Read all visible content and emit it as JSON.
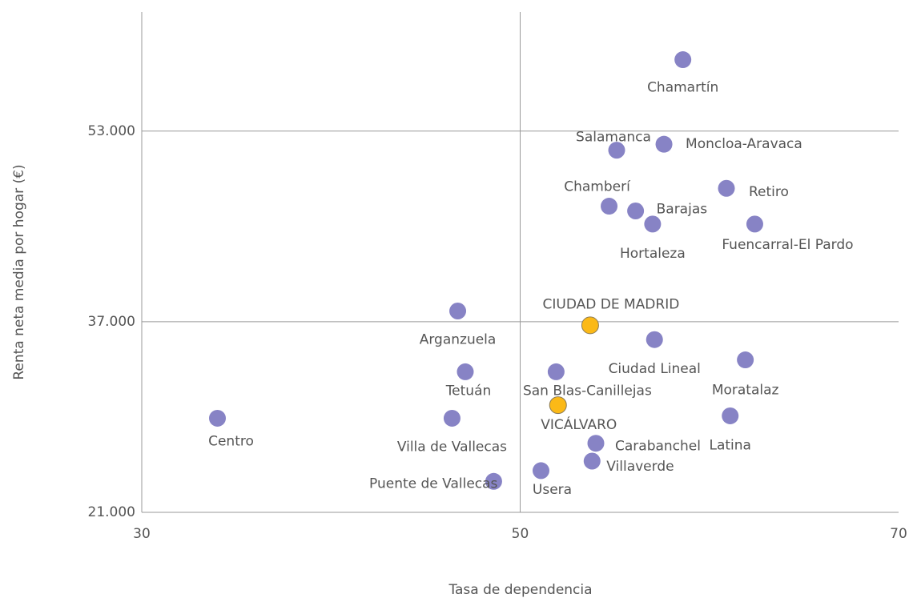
{
  "chart_data": {
    "type": "scatter",
    "x_label": "Tasa de dependencia",
    "y_label": "Renta neta media por hogar (€)",
    "xlim": [
      30,
      70
    ],
    "xticks": [
      30,
      50,
      70
    ],
    "ylim": [
      21000,
      63000
    ],
    "yticks": [
      {
        "value": 21000,
        "label": "21.000"
      },
      {
        "value": 37000,
        "label": "37.000"
      },
      {
        "value": 53000,
        "label": "53.000"
      }
    ],
    "grid": true,
    "labels": [
      "Chamartín",
      "Salamanca",
      "Moncloa-Aravaca",
      "Retiro",
      "Chamberí",
      "Barajas",
      "Hortaleza",
      "Fuencarral-El Pardo",
      "Arganzuela",
      "CIUDAD DE MADRID",
      "Ciudad Lineal",
      "Moratalaz",
      "Tetuán",
      "San Blas-Canillejas",
      "VICÁLVARO",
      "Centro",
      "Villa de Vallecas",
      "Latina",
      "Carabanchel",
      "Villaverde",
      "Usera",
      "Puente de Vallecas"
    ],
    "x": [
      58.6,
      55.1,
      57.6,
      60.9,
      54.7,
      56.1,
      57.0,
      62.4,
      46.7,
      53.7,
      57.1,
      61.9,
      47.1,
      51.9,
      52.0,
      34.0,
      46.4,
      61.1,
      54.0,
      53.8,
      51.1,
      48.6
    ],
    "values": [
      59000,
      51400,
      51900,
      48200,
      46700,
      46300,
      45200,
      45200,
      37900,
      36700,
      35500,
      33800,
      32800,
      32800,
      30000,
      28900,
      28900,
      29100,
      26800,
      25300,
      24500,
      23600
    ],
    "colors": [
      "#8783c5",
      "#8783c5",
      "#8783c5",
      "#8783c5",
      "#8783c5",
      "#8783c5",
      "#8783c5",
      "#8783c5",
      "#8783c5",
      "#fbb917",
      "#8783c5",
      "#8783c5",
      "#8783c5",
      "#8783c5",
      "#fbb917",
      "#8783c5",
      "#8783c5",
      "#8783c5",
      "#8783c5",
      "#8783c5",
      "#8783c5",
      "#8783c5"
    ]
  }
}
